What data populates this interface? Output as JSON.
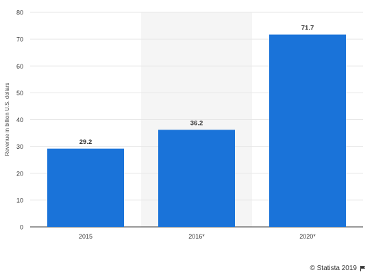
{
  "chart_data": {
    "type": "bar",
    "categories": [
      "2015",
      "2016*",
      "2020*"
    ],
    "values": [
      29.2,
      36.2,
      71.7
    ],
    "data_labels": [
      "29.2",
      "36.2",
      "71.7"
    ],
    "title": "",
    "xlabel": "",
    "ylabel": "Revenue in billion U.S. dollars",
    "ylim": [
      0,
      80
    ],
    "yticks": [
      0,
      10,
      20,
      30,
      40,
      50,
      60,
      70,
      80
    ],
    "grid": true,
    "highlighted_category": "2016*",
    "colors": {
      "bar": "#1a73d9",
      "highlight_band": "#f5f5f5",
      "grid": "#e6e6e6",
      "axis": "#333333"
    }
  },
  "credit": {
    "text": "© Statista 2019",
    "icon": "flag-icon"
  }
}
